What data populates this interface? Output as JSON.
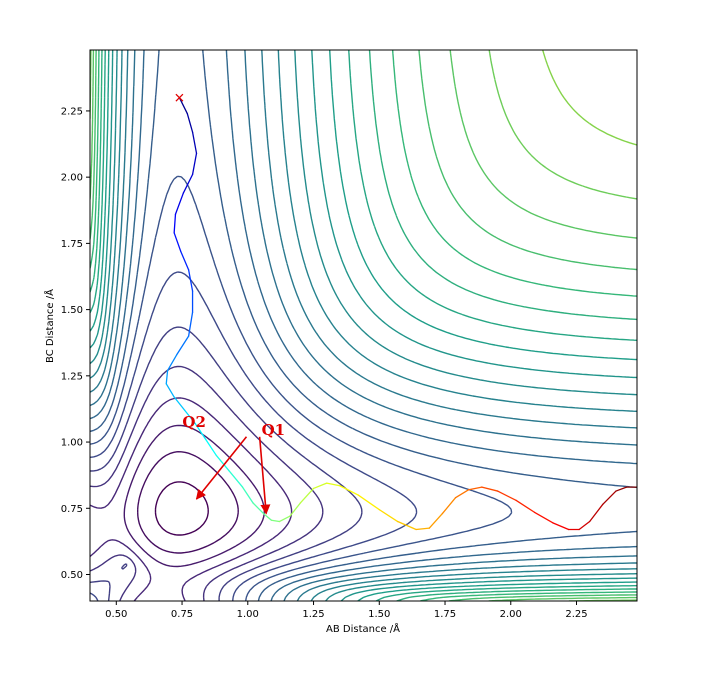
{
  "chart_data": {
    "type": "contour",
    "title": "",
    "xlabel": "AB Distance /Å",
    "ylabel": "BC Distance /Å",
    "xlim": [
      0.4,
      2.48
    ],
    "ylim": [
      0.4,
      2.48
    ],
    "xticks": [
      0.5,
      0.75,
      1.0,
      1.25,
      1.5,
      1.75,
      2.0,
      2.25
    ],
    "yticks": [
      0.5,
      0.75,
      1.0,
      1.25,
      1.5,
      1.75,
      2.0,
      2.25
    ],
    "xtick_labels": [
      "0.50",
      "0.75",
      "1.00",
      "1.25",
      "1.50",
      "1.75",
      "2.00",
      "2.25"
    ],
    "ytick_labels": [
      "0.50",
      "0.75",
      "1.00",
      "1.25",
      "1.50",
      "1.75",
      "2.00",
      "2.25"
    ],
    "grid": false,
    "colormap": "viridis",
    "contour_count": 28,
    "trajectory": {
      "start_marker": "x",
      "start_marker_color": "#e00000",
      "colormap": "jet",
      "points": [
        [
          0.74,
          2.3
        ],
        [
          0.77,
          2.24
        ],
        [
          0.79,
          2.17
        ],
        [
          0.805,
          2.09
        ],
        [
          0.79,
          2.01
        ],
        [
          0.755,
          1.94
        ],
        [
          0.725,
          1.86
        ],
        [
          0.72,
          1.79
        ],
        [
          0.745,
          1.72
        ],
        [
          0.775,
          1.65
        ],
        [
          0.79,
          1.57
        ],
        [
          0.79,
          1.49
        ],
        [
          0.775,
          1.4
        ],
        [
          0.73,
          1.33
        ],
        [
          0.695,
          1.27
        ],
        [
          0.69,
          1.22
        ],
        [
          0.72,
          1.17
        ],
        [
          0.76,
          1.12
        ],
        [
          0.8,
          1.07
        ],
        [
          0.84,
          1.01
        ],
        [
          0.88,
          0.95
        ],
        [
          0.93,
          0.89
        ],
        [
          0.98,
          0.83
        ],
        [
          1.02,
          0.77
        ],
        [
          1.06,
          0.73
        ],
        [
          1.09,
          0.705
        ],
        [
          1.12,
          0.7
        ],
        [
          1.16,
          0.72
        ],
        [
          1.2,
          0.77
        ],
        [
          1.25,
          0.825
        ],
        [
          1.3,
          0.845
        ],
        [
          1.35,
          0.835
        ],
        [
          1.42,
          0.8
        ],
        [
          1.5,
          0.745
        ],
        [
          1.57,
          0.7
        ],
        [
          1.64,
          0.67
        ],
        [
          1.69,
          0.675
        ],
        [
          1.74,
          0.73
        ],
        [
          1.79,
          0.79
        ],
        [
          1.84,
          0.82
        ],
        [
          1.89,
          0.83
        ],
        [
          1.95,
          0.815
        ],
        [
          2.02,
          0.78
        ],
        [
          2.09,
          0.735
        ],
        [
          2.16,
          0.695
        ],
        [
          2.22,
          0.67
        ],
        [
          2.26,
          0.67
        ],
        [
          2.3,
          0.7
        ],
        [
          2.35,
          0.765
        ],
        [
          2.4,
          0.815
        ],
        [
          2.44,
          0.83
        ],
        [
          2.48,
          0.83
        ]
      ]
    },
    "annotations": [
      {
        "text": "Q1",
        "arrow_from": [
          1.045,
          1.02
        ],
        "arrow_to": [
          1.07,
          0.73
        ],
        "color": "#e00000"
      },
      {
        "text": "Q2",
        "arrow_from": [
          0.835,
          1.0
        ],
        "arrow_to": [
          0.8,
          0.79
        ],
        "color": "#e00000"
      }
    ],
    "arrow_line": {
      "from": [
        0.995,
        1.02
      ],
      "to": [
        0.805,
        0.785
      ]
    }
  }
}
